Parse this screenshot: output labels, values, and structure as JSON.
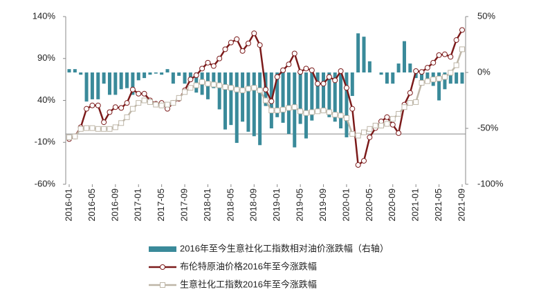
{
  "chart_data": {
    "type": "combo",
    "categories": [
      "2016-01",
      null,
      null,
      null,
      "2016-05",
      null,
      null,
      null,
      "2016-09",
      null,
      null,
      null,
      "2017-01",
      null,
      null,
      null,
      "2017-05",
      null,
      null,
      null,
      "2017-09",
      null,
      null,
      null,
      "2018-01",
      null,
      null,
      null,
      "2018-05",
      null,
      null,
      null,
      "2018-09",
      null,
      null,
      null,
      "2019-01",
      null,
      null,
      null,
      "2019-05",
      null,
      null,
      null,
      "2019-09",
      null,
      null,
      null,
      "2020-01",
      null,
      null,
      null,
      "2020-05",
      null,
      null,
      null,
      "2020-09",
      null,
      null,
      null,
      "2021-01",
      null,
      null,
      null,
      "2021-05",
      null,
      null,
      null,
      "2021-09"
    ],
    "series": [
      {
        "name": "2016年至今生意社化工指数相对油价涨跌幅（右轴）",
        "type": "bar",
        "axis": "y2",
        "color": "#3a8a9a",
        "values": [
          3,
          3,
          -2,
          -26,
          -24,
          -24,
          -10,
          -20,
          -20,
          -15,
          -14,
          -20,
          -7,
          -5,
          -2,
          -1,
          -2,
          3,
          -10,
          -3,
          -10,
          -5,
          -18,
          -20,
          -24,
          -14,
          -33,
          -51,
          -47,
          -63,
          -44,
          -53,
          -57,
          -65,
          -30,
          -50,
          -40,
          -45,
          -55,
          -67,
          -46,
          -59,
          -43,
          -35,
          -36,
          -40,
          -44,
          -50,
          -58,
          -21,
          35,
          32,
          10,
          0,
          -2,
          -10,
          -10,
          8,
          28,
          8,
          -5,
          -10,
          -8,
          -12,
          -25,
          -15,
          -10,
          -10,
          -10
        ]
      },
      {
        "name": "布伦特原油价格2016年至今涨跌幅",
        "type": "line",
        "marker": "circle",
        "color": "#7b1a1a",
        "values": [
          -6,
          -3,
          8,
          30,
          34,
          34,
          14,
          26,
          32,
          31,
          37,
          53,
          48,
          48,
          40,
          36,
          37,
          30,
          37,
          42,
          52,
          65,
          70,
          78,
          85,
          81,
          90,
          101,
          109,
          113,
          99,
          108,
          120,
          106,
          53,
          39,
          68,
          76,
          83,
          96,
          74,
          78,
          76,
          60,
          60,
          68,
          64,
          75,
          55,
          30,
          -37,
          -32,
          -4,
          7,
          15,
          20,
          11,
          1,
          35,
          49,
          75,
          74,
          79,
          85,
          94,
          95,
          92,
          112,
          124
        ]
      },
      {
        "name": "生意社化工指数2016年至今涨跌幅",
        "type": "line",
        "marker": "square",
        "color": "#bdb5a6",
        "values": [
          -4,
          -3,
          6,
          7,
          7,
          6,
          6,
          6,
          8,
          13,
          20,
          30,
          37,
          40,
          38,
          35,
          34,
          35,
          37,
          43,
          50,
          55,
          58,
          62,
          60,
          59,
          58,
          56,
          55,
          53,
          52,
          54,
          55,
          52,
          40,
          28,
          28,
          29,
          31,
          32,
          27,
          25,
          26,
          27,
          28,
          26,
          23,
          22,
          19,
          0,
          -2,
          2,
          6,
          10,
          10,
          12,
          18,
          24,
          32,
          37,
          38,
          61,
          63,
          65,
          66,
          68,
          73,
          82,
          101
        ]
      }
    ],
    "ylim": [
      -60,
      140
    ],
    "yticks": [
      {
        "value": -60,
        "label": "-60%"
      },
      {
        "value": -10,
        "label": "-10%"
      },
      {
        "value": 40,
        "label": "40%"
      },
      {
        "value": 90,
        "label": "90%"
      },
      {
        "value": 140,
        "label": "140%"
      }
    ],
    "y2lim": [
      -100,
      50
    ],
    "y2ticks": [
      {
        "value": -100,
        "label": "-100%"
      },
      {
        "value": -50,
        "label": "-50%"
      },
      {
        "value": 0,
        "label": "0%"
      },
      {
        "value": 50,
        "label": "50%"
      }
    ]
  }
}
